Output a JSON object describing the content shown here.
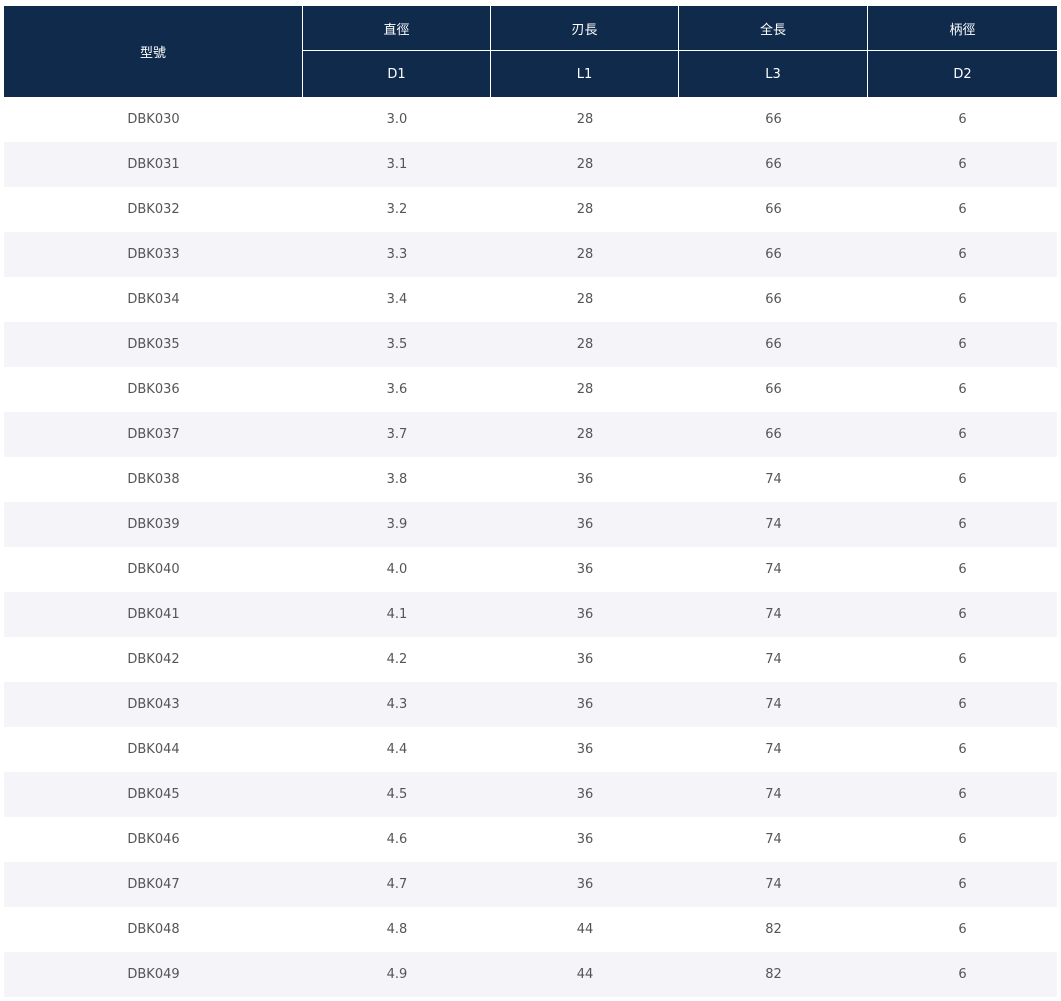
{
  "table": {
    "header": {
      "model": "型號",
      "groups": [
        "直徑",
        "刃長",
        "全長",
        "柄徑"
      ],
      "codes": [
        "D1",
        "L1",
        "L3",
        "D2"
      ]
    },
    "rows": [
      [
        "DBK030",
        "3.0",
        "28",
        "66",
        "6"
      ],
      [
        "DBK031",
        "3.1",
        "28",
        "66",
        "6"
      ],
      [
        "DBK032",
        "3.2",
        "28",
        "66",
        "6"
      ],
      [
        "DBK033",
        "3.3",
        "28",
        "66",
        "6"
      ],
      [
        "DBK034",
        "3.4",
        "28",
        "66",
        "6"
      ],
      [
        "DBK035",
        "3.5",
        "28",
        "66",
        "6"
      ],
      [
        "DBK036",
        "3.6",
        "28",
        "66",
        "6"
      ],
      [
        "DBK037",
        "3.7",
        "28",
        "66",
        "6"
      ],
      [
        "DBK038",
        "3.8",
        "36",
        "74",
        "6"
      ],
      [
        "DBK039",
        "3.9",
        "36",
        "74",
        "6"
      ],
      [
        "DBK040",
        "4.0",
        "36",
        "74",
        "6"
      ],
      [
        "DBK041",
        "4.1",
        "36",
        "74",
        "6"
      ],
      [
        "DBK042",
        "4.2",
        "36",
        "74",
        "6"
      ],
      [
        "DBK043",
        "4.3",
        "36",
        "74",
        "6"
      ],
      [
        "DBK044",
        "4.4",
        "36",
        "74",
        "6"
      ],
      [
        "DBK045",
        "4.5",
        "36",
        "74",
        "6"
      ],
      [
        "DBK046",
        "4.6",
        "36",
        "74",
        "6"
      ],
      [
        "DBK047",
        "4.7",
        "36",
        "74",
        "6"
      ],
      [
        "DBK048",
        "4.8",
        "44",
        "82",
        "6"
      ],
      [
        "DBK049",
        "4.9",
        "44",
        "82",
        "6"
      ]
    ]
  }
}
